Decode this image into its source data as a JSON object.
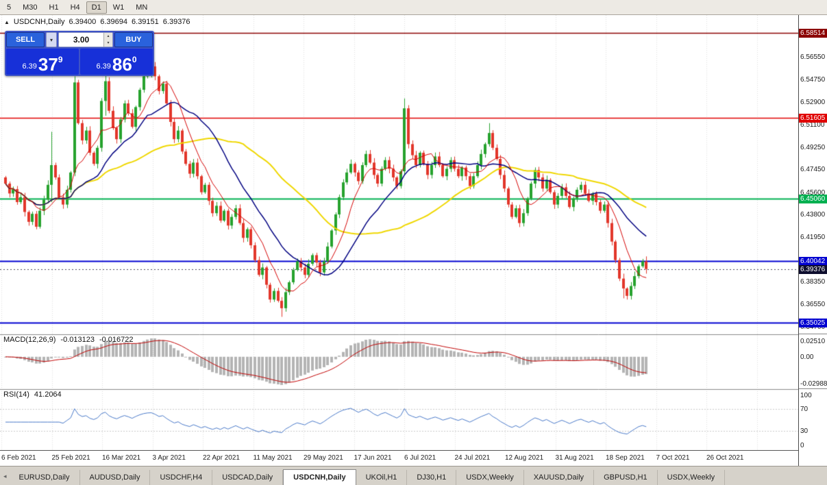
{
  "toolbar": {
    "timeframes": [
      "5",
      "M30",
      "H1",
      "H4",
      "D1",
      "W1",
      "MN"
    ],
    "active": "D1"
  },
  "trade_panel": {
    "sell_label": "SELL",
    "buy_label": "BUY",
    "volume": "3.00",
    "bid_prefix": "6.39",
    "bid_big": "37",
    "bid_sup": "9",
    "ask_prefix": "6.39",
    "ask_big": "86",
    "ask_sup": "0"
  },
  "tabs": {
    "items": [
      "EURUSD,Daily",
      "AUDUSD,Daily",
      "USDCHF,H4",
      "USDCAD,Daily",
      "USDCNH,Daily",
      "UKOil,H1",
      "DJ30,H1",
      "USDX,Weekly",
      "XAUUSD,Daily",
      "GBPUSD,H1",
      "USDX,Weekly"
    ],
    "active_index": 4
  },
  "chart_data": {
    "type": "candlestick",
    "symbol_period": "USDCNH,Daily",
    "ohlc": {
      "open": "6.39400",
      "high": "6.39694",
      "low": "6.39151",
      "close": "6.39376"
    },
    "price_axis_range": [
      6.3414,
      6.5996
    ],
    "y_tick_labels": [
      "6.56550",
      "6.54750",
      "6.52900",
      "6.51100",
      "6.49250",
      "6.47450",
      "6.45600",
      "6.43800",
      "6.41950",
      "6.38350",
      "6.36550",
      "6.34700"
    ],
    "x_tick_labels": [
      "6 Feb 2021",
      "25 Feb 2021",
      "16 Mar 2021",
      "3 Apr 2021",
      "22 Apr 2021",
      "11 May 2021",
      "29 May 2021",
      "17 Jun 2021",
      "6 Jul 2021",
      "24 Jul 2021",
      "12 Aug 2021",
      "31 Aug 2021",
      "18 Sep 2021",
      "7 Oct 2021",
      "26 Oct 2021"
    ],
    "hlines": [
      {
        "label": "6.58514",
        "color": "#8B0000",
        "width": 1.5
      },
      {
        "label": "6.51605",
        "color": "#E00000",
        "width": 1.5
      },
      {
        "label": "6.45060",
        "color": "#00B050",
        "width": 2
      },
      {
        "label": "6.40042",
        "color": "#0000D0",
        "width": 2
      },
      {
        "label": "6.35025",
        "color": "#0000D0",
        "width": 2
      }
    ],
    "current_price": {
      "label": "6.39376",
      "color": "#0E0E2E"
    },
    "colors": {
      "up": "#27A22E",
      "down": "#E2372B"
    },
    "candles": {
      "first_open": 6.468,
      "closes": [
        6.463,
        6.455,
        6.4585,
        6.448,
        6.452,
        6.44,
        6.432,
        6.4385,
        6.428,
        6.441,
        6.45,
        6.462,
        6.478,
        6.468,
        6.452,
        6.446,
        6.458,
        6.472,
        6.545,
        6.512,
        6.498,
        6.506,
        6.488,
        6.479,
        6.492,
        6.53,
        6.546,
        6.522,
        6.508,
        6.499,
        6.515,
        6.528,
        6.52,
        6.509,
        6.525,
        6.539,
        6.55,
        6.556,
        6.558,
        6.55,
        6.538,
        6.544,
        6.528,
        6.513,
        6.499,
        6.506,
        6.489,
        6.479,
        6.471,
        6.48,
        6.469,
        6.456,
        6.462,
        6.449,
        6.439,
        6.445,
        6.433,
        6.441,
        6.429,
        6.436,
        6.443,
        6.431,
        6.419,
        6.426,
        6.413,
        6.401,
        6.389,
        6.395,
        6.381,
        6.369,
        6.376,
        6.368,
        6.362,
        6.375,
        6.383,
        6.393,
        6.4,
        6.395,
        6.389,
        6.398,
        6.405,
        6.399,
        6.391,
        6.4,
        6.412,
        6.425,
        6.438,
        6.452,
        6.464,
        6.472,
        6.479,
        6.472,
        6.465,
        6.478,
        6.487,
        6.48,
        6.47,
        6.463,
        6.475,
        6.482,
        6.475,
        6.468,
        6.461,
        6.473,
        6.524,
        6.495,
        6.486,
        6.478,
        6.488,
        6.479,
        6.47,
        6.478,
        6.485,
        6.478,
        6.469,
        6.475,
        6.482,
        6.475,
        6.469,
        6.476,
        6.469,
        6.461,
        6.469,
        6.478,
        6.487,
        6.495,
        6.504,
        6.492,
        6.483,
        6.47,
        6.459,
        6.446,
        6.436,
        6.443,
        6.431,
        6.439,
        6.451,
        6.463,
        6.474,
        6.468,
        6.459,
        6.466,
        6.456,
        6.446,
        6.453,
        6.46,
        6.453,
        6.444,
        6.451,
        6.458,
        6.462,
        6.455,
        6.449,
        6.455,
        6.448,
        6.441,
        6.446,
        6.431,
        6.416,
        6.401,
        6.386,
        6.378,
        6.372,
        6.38,
        6.388,
        6.396,
        6.4,
        6.39376
      ],
      "special_wicks": {
        "12": [
          6.505,
          6.448
        ],
        "18": [
          6.55,
          6.469
        ],
        "26": [
          6.556,
          6.518
        ],
        "38": [
          6.566,
          6.549
        ],
        "72": [
          6.371,
          6.355
        ],
        "104": [
          6.532,
          6.47
        ],
        "126": [
          6.512,
          6.493
        ],
        "161": [
          6.39,
          6.37
        ],
        "162": [
          6.379,
          6.369
        ],
        "167": [
          6.404,
          6.39
        ]
      }
    },
    "moving_averages": [
      {
        "period": 45,
        "color": "#EFD700",
        "width": 2
      },
      {
        "period": 20,
        "color": "#000080",
        "width": 1.5
      },
      {
        "period": 8,
        "color": "#D40000",
        "width": 1
      }
    ],
    "macd": {
      "name": "MACD(12,26,9)",
      "params": [
        12,
        26,
        9
      ],
      "value_main": "-0.013123",
      "value_signal": "-0.016722",
      "axis_labels": [
        "0.02510",
        "0.00",
        "-0.02988"
      ],
      "histogram_color": "#B4B4B4",
      "signal_color": "#C00000"
    },
    "rsi": {
      "name": "RSI(14)",
      "period": 14,
      "value": "41.2064",
      "color": "#4878C8",
      "levels": [
        70,
        30
      ],
      "axis_labels": [
        "100",
        "70",
        "30",
        "0"
      ]
    }
  }
}
